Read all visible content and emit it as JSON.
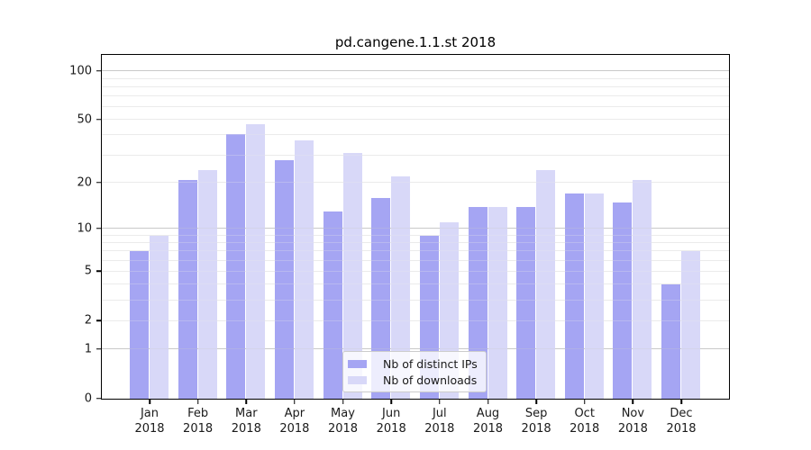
{
  "title": "pd.cangene.1.1.st 2018",
  "chart_data": {
    "type": "bar",
    "title": "pd.cangene.1.1.st 2018",
    "categories": [
      "Jan",
      "Feb",
      "Mar",
      "Apr",
      "May",
      "Jun",
      "Jul",
      "Aug",
      "Sep",
      "Oct",
      "Nov",
      "Dec"
    ],
    "year": "2018",
    "series": [
      {
        "name": "Nb of distinct IPs",
        "color": "#a5a5f3",
        "values": [
          7,
          21,
          41,
          28,
          13,
          16,
          9,
          14,
          14,
          17,
          15,
          4
        ]
      },
      {
        "name": "Nb of downloads",
        "color": "#d8d8f8",
        "values": [
          9,
          24,
          47,
          37,
          31,
          22,
          11,
          14,
          24,
          17,
          21,
          7
        ]
      }
    ],
    "yscale": "log1p",
    "ylim": [
      0,
      125
    ],
    "ytick_labels": [
      100,
      50,
      20,
      10,
      5,
      2,
      1,
      0
    ],
    "grid": {
      "major": [
        1,
        10,
        100
      ],
      "minor": [
        2,
        3,
        4,
        5,
        6,
        7,
        8,
        9,
        20,
        30,
        40,
        50,
        60,
        70,
        80,
        90
      ]
    },
    "legend_position": "lower center",
    "xlabel": "",
    "ylabel": ""
  },
  "colors": {
    "grid_major": "#c9c9c9",
    "grid_minor": "#ebebeb",
    "spine": "#000000",
    "text": "#1a1a1a",
    "legend_border": "#cccccc"
  }
}
